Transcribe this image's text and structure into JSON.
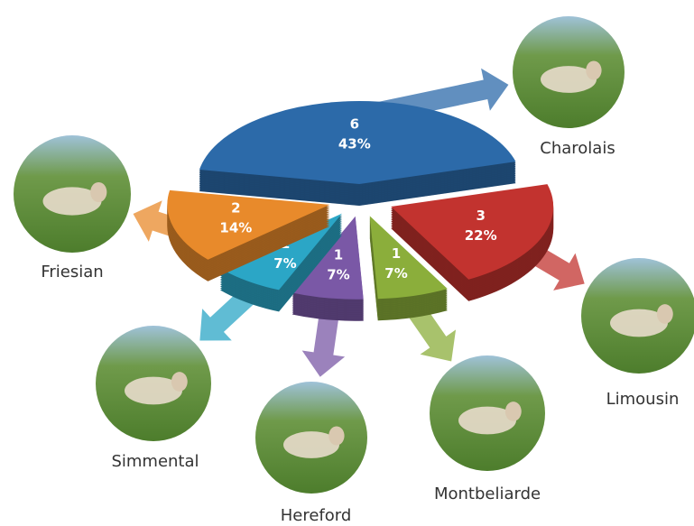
{
  "chart_data": {
    "type": "pie",
    "categories": [
      "Charolais",
      "Limousin",
      "Montbeliarde",
      "Hereford",
      "Simmental",
      "Friesian"
    ],
    "values": [
      6,
      3,
      1,
      1,
      1,
      2
    ],
    "percents": [
      43,
      22,
      7,
      7,
      7,
      14
    ],
    "percent_labels": [
      "43%",
      "22%",
      "7%",
      "7%",
      "7%",
      "14%"
    ],
    "colors": [
      "#2c6aa9",
      "#c2332f",
      "#8bae3b",
      "#7a58a6",
      "#2ba6c6",
      "#e88a2b"
    ]
  }
}
